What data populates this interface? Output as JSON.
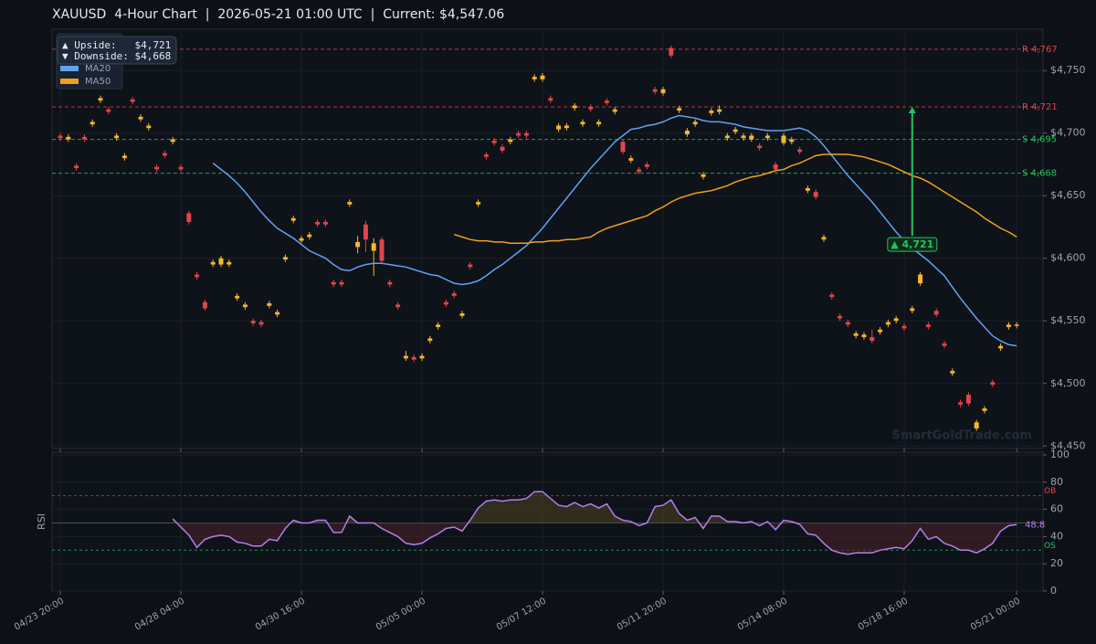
{
  "chart_data": [
    {
      "type": "candlestick",
      "title": "XAUUSD  4-Hour Chart  |  2026-05-21 01:00 UTC  |  Current: $4,547.06",
      "categories": [
        "04/23 20:00",
        null,
        null,
        null,
        null,
        null,
        null,
        null,
        null,
        null,
        null,
        null,
        null,
        null,
        null,
        "04/28 04:00",
        null,
        null,
        null,
        null,
        null,
        null,
        null,
        null,
        null,
        null,
        null,
        null,
        null,
        null,
        "04/30 16:00",
        null,
        null,
        null,
        null,
        null,
        null,
        null,
        null,
        null,
        null,
        null,
        null,
        null,
        null,
        "05/05 00:00",
        null,
        null,
        null,
        null,
        null,
        null,
        null,
        null,
        null,
        null,
        null,
        null,
        null,
        null,
        "05/07 12:00",
        null,
        null,
        null,
        null,
        null,
        null,
        null,
        null,
        null,
        null,
        null,
        null,
        null,
        null,
        "05/11 20:00",
        null,
        null,
        null,
        null,
        null,
        null,
        null,
        null,
        null,
        null,
        null,
        null,
        null,
        null,
        "05/14 08:00",
        null,
        null,
        null,
        null,
        null,
        null,
        null,
        null,
        null,
        null,
        null,
        null,
        null,
        null,
        "05/18 16:00",
        null,
        null,
        null,
        null,
        null,
        null,
        null,
        null,
        null,
        null,
        null,
        null,
        null,
        "05/21 00:00"
      ],
      "open": [
        4698,
        4695,
        4674,
        4697,
        4707,
        4726,
        4719,
        4696,
        4680,
        4727,
        4711,
        4704,
        4673,
        4684,
        4693,
        4673,
        4636,
        4587,
        4565,
        4595,
        4595,
        4595,
        4568,
        4561,
        4550,
        4549,
        4562,
        4555,
        4599,
        4630,
        4614,
        4617,
        4629,
        4629,
        4581,
        4581,
        4643,
        4609,
        4627,
        4606,
        4615,
        4581,
        4563,
        4520,
        4521,
        4520,
        4534,
        4545,
        4565,
        4572,
        4554,
        4595,
        4643,
        4683,
        4694,
        4689,
        4693,
        4700,
        4700,
        4743,
        4743,
        4728,
        4703,
        4704,
        4720,
        4707,
        4721,
        4707,
        4726,
        4717,
        4693,
        4678,
        4671,
        4675,
        4735,
        4732,
        4768,
        4718,
        4699,
        4707,
        4665,
        4716,
        4717,
        4696,
        4701,
        4696,
        4695,
        4690,
        4696,
        4675,
        4692,
        4693,
        4687,
        4654,
        4653,
        4615,
        4571,
        4554,
        4549,
        4538,
        4537,
        4537,
        4541,
        4547,
        4550,
        4546,
        4558,
        4580,
        4547,
        4558,
        4532,
        4508,
        4485,
        4491,
        4464,
        4478,
        4501,
        4528,
        4545,
        4546
      ],
      "high": [
        4700,
        4699,
        4676,
        4699,
        4711,
        4730,
        4721,
        4700,
        4684,
        4729,
        4715,
        4708,
        4675,
        4686,
        4697,
        4675,
        4638,
        4589,
        4567,
        4599,
        4602,
        4599,
        4572,
        4565,
        4552,
        4551,
        4566,
        4559,
        4603,
        4634,
        4618,
        4621,
        4631,
        4631,
        4583,
        4583,
        4647,
        4618,
        4630,
        4616,
        4617,
        4583,
        4565,
        4526,
        4523,
        4524,
        4538,
        4549,
        4567,
        4574,
        4558,
        4597,
        4647,
        4685,
        4696,
        4691,
        4697,
        4702,
        4702,
        4747,
        4748,
        4730,
        4708,
        4708,
        4724,
        4711,
        4723,
        4711,
        4728,
        4721,
        4695,
        4682,
        4673,
        4677,
        4737,
        4737,
        4770,
        4722,
        4704,
        4711,
        4669,
        4720,
        4722,
        4700,
        4705,
        4700,
        4700,
        4692,
        4700,
        4677,
        4700,
        4697,
        4689,
        4658,
        4655,
        4619,
        4573,
        4556,
        4551,
        4542,
        4541,
        4543,
        4545,
        4551,
        4554,
        4548,
        4562,
        4589,
        4549,
        4560,
        4534,
        4512,
        4487,
        4493,
        4471,
        4482,
        4503,
        4532,
        4549,
        4549
      ],
      "low": [
        4694,
        4693,
        4670,
        4693,
        4705,
        4724,
        4715,
        4694,
        4678,
        4723,
        4709,
        4702,
        4669,
        4680,
        4691,
        4669,
        4627,
        4583,
        4558,
        4593,
        4593,
        4593,
        4566,
        4559,
        4546,
        4545,
        4560,
        4553,
        4597,
        4628,
        4612,
        4615,
        4625,
        4625,
        4577,
        4577,
        4641,
        4604,
        4605,
        4586,
        4596,
        4577,
        4559,
        4518,
        4517,
        4518,
        4532,
        4543,
        4561,
        4568,
        4552,
        4591,
        4641,
        4679,
        4690,
        4684,
        4691,
        4696,
        4696,
        4741,
        4741,
        4724,
        4701,
        4702,
        4718,
        4705,
        4717,
        4705,
        4722,
        4715,
        4683,
        4676,
        4667,
        4671,
        4731,
        4730,
        4760,
        4716,
        4697,
        4705,
        4663,
        4714,
        4715,
        4694,
        4699,
        4694,
        4693,
        4686,
        4694,
        4669,
        4690,
        4691,
        4683,
        4652,
        4647,
        4613,
        4567,
        4550,
        4545,
        4536,
        4535,
        4532,
        4539,
        4545,
        4548,
        4542,
        4556,
        4578,
        4543,
        4553,
        4528,
        4506,
        4481,
        4482,
        4462,
        4476,
        4497,
        4526,
        4543,
        4544
      ],
      "close": [
        4696,
        4697,
        4672,
        4695,
        4709,
        4728,
        4717,
        4698,
        4682,
        4725,
        4713,
        4706,
        4671,
        4682,
        4695,
        4671,
        4629,
        4585,
        4560,
        4597,
        4600,
        4597,
        4570,
        4563,
        4548,
        4547,
        4564,
        4557,
        4601,
        4632,
        4616,
        4619,
        4627,
        4627,
        4579,
        4579,
        4645,
        4613,
        4615,
        4612,
        4598,
        4579,
        4561,
        4522,
        4519,
        4522,
        4536,
        4547,
        4563,
        4570,
        4556,
        4593,
        4645,
        4681,
        4692,
        4686,
        4695,
        4698,
        4698,
        4745,
        4746,
        4726,
        4706,
        4706,
        4722,
        4709,
        4719,
        4709,
        4724,
        4719,
        4685,
        4680,
        4669,
        4673,
        4733,
        4735,
        4762,
        4720,
        4702,
        4709,
        4667,
        4718,
        4719,
        4698,
        4703,
        4698,
        4698,
        4688,
        4698,
        4671,
        4698,
        4695,
        4685,
        4656,
        4649,
        4617,
        4569,
        4552,
        4547,
        4540,
        4539,
        4534,
        4543,
        4549,
        4552,
        4544,
        4560,
        4587,
        4545,
        4555,
        4530,
        4510,
        4483,
        4484,
        4469,
        4480,
        4499,
        4530,
        4547,
        4547.06
      ],
      "up_color": "#f5b731",
      "down_color": "#e0454a",
      "ylim": [
        4448,
        4783
      ],
      "yticks": [
        {
          "value": 4450,
          "label": "$4,450"
        },
        {
          "value": 4500,
          "label": "$4,500"
        },
        {
          "value": 4550,
          "label": "$4,550"
        },
        {
          "value": 4600,
          "label": "$4,600"
        },
        {
          "value": 4650,
          "label": "$4,650"
        },
        {
          "value": 4700,
          "label": "$4,700"
        },
        {
          "value": 4750,
          "label": "$4,750"
        }
      ],
      "grid": true,
      "legend": "upper left",
      "series": [
        {
          "name": "MA20",
          "color": "#5fa3f0",
          "values": [
            null,
            null,
            null,
            null,
            null,
            null,
            null,
            null,
            null,
            null,
            null,
            null,
            null,
            null,
            null,
            null,
            null,
            null,
            null,
            4676,
            4671,
            4666,
            4660,
            4653,
            4645,
            4637,
            4630,
            4624,
            4620,
            4616,
            4611,
            4606,
            4603,
            4600,
            4595,
            4591,
            4590,
            4593,
            4595,
            4596,
            4596,
            4595,
            4594,
            4593,
            4591,
            4589,
            4587,
            4586,
            4583,
            4580,
            4579,
            4580,
            4582,
            4586,
            4591,
            4595,
            4600,
            4605,
            4610,
            4617,
            4624,
            4632,
            4640,
            4648,
            4656,
            4664,
            4672,
            4679,
            4686,
            4693,
            4698,
            4703,
            4704,
            4706,
            4707,
            4709,
            4712,
            4714,
            4713,
            4712,
            4710,
            4709,
            4709,
            4708,
            4707,
            4705,
            4704,
            4703,
            4702,
            4702,
            4702,
            4703,
            4704,
            4702,
            4697,
            4690,
            4682,
            4674,
            4666,
            4659,
            4652,
            4645,
            4637,
            4629,
            4621,
            4614,
            4608,
            4603,
            4598,
            4592,
            4586,
            4577,
            4568,
            4560,
            4552,
            4545,
            4538,
            4534,
            4531,
            4530
          ]
        },
        {
          "name": "MA50",
          "color": "#f0a020",
          "values": [
            null,
            null,
            null,
            null,
            null,
            null,
            null,
            null,
            null,
            null,
            null,
            null,
            null,
            null,
            null,
            null,
            null,
            null,
            null,
            null,
            null,
            null,
            null,
            null,
            null,
            null,
            null,
            null,
            null,
            null,
            null,
            null,
            null,
            null,
            null,
            null,
            null,
            null,
            null,
            null,
            null,
            null,
            null,
            null,
            null,
            null,
            null,
            null,
            null,
            4619,
            4617,
            4615,
            4614,
            4614,
            4613,
            4613,
            4612,
            4612,
            4612,
            4613,
            4613,
            4614,
            4614,
            4615,
            4615,
            4616,
            4617,
            4621,
            4624,
            4626,
            4628,
            4630,
            4632,
            4634,
            4638,
            4641,
            4645,
            4648,
            4650,
            4652,
            4653,
            4654,
            4656,
            4658,
            4661,
            4663,
            4665,
            4666,
            4668,
            4670,
            4671,
            4674,
            4676,
            4679,
            4682,
            4683,
            4683,
            4683,
            4683,
            4682,
            4681,
            4679,
            4677,
            4675,
            4672,
            4669,
            4666,
            4664,
            4661,
            4657,
            4653,
            4649,
            4645,
            4641,
            4637,
            4632,
            4628,
            4624,
            4621,
            4617
          ]
        }
      ],
      "levels": [
        {
          "value": 4767,
          "label": "R 4,767",
          "color": "#e0454a"
        },
        {
          "value": 4721,
          "label": "R 4,721",
          "color": "#e0454a"
        },
        {
          "value": 4695,
          "label": "S 4,695",
          "color": "#22c55e"
        },
        {
          "value": 4668,
          "label": "S 4,668",
          "color": "#22c55e"
        }
      ],
      "annotation": {
        "at": 106,
        "from": 4618,
        "to": 4721,
        "label": "▲ 4,721",
        "color": "#22c55e"
      },
      "info_box": [
        "▲ Upside:   $4,721",
        "▼ Downside: $4,668"
      ],
      "watermark": "SmartGoldTrade.com"
    },
    {
      "type": "line",
      "ylabel": "RSI",
      "color": "#b37feb",
      "values": [
        null,
        null,
        null,
        null,
        null,
        null,
        null,
        null,
        null,
        null,
        null,
        null,
        null,
        null,
        53,
        47,
        41,
        32,
        38,
        40,
        41,
        40,
        36,
        35,
        33,
        33,
        38,
        37,
        46,
        52,
        50,
        50,
        52,
        52,
        43,
        43,
        55,
        50,
        50,
        50,
        46,
        43,
        40,
        35,
        34,
        35,
        39,
        42,
        46,
        47,
        44,
        52,
        61,
        66,
        67,
        66,
        67,
        67,
        68,
        73,
        73,
        68,
        63,
        62,
        65,
        62,
        64,
        61,
        64,
        55,
        52,
        51,
        48,
        50,
        62,
        63,
        67,
        57,
        52,
        54,
        46,
        55,
        55,
        51,
        51,
        50,
        51,
        48,
        51,
        45,
        52,
        51,
        49,
        42,
        41,
        35,
        30,
        28,
        27,
        28,
        28,
        28,
        30,
        31,
        32,
        31,
        37,
        46,
        38,
        40,
        35,
        33,
        30,
        30,
        28,
        31,
        35,
        44,
        48,
        48.8
      ],
      "ylim": [
        0,
        102
      ],
      "yticks": [
        0,
        20,
        40,
        60,
        80,
        100
      ],
      "grid": true,
      "baseline": 50,
      "levels": [
        {
          "value": 70,
          "label": "OB",
          "color": "#e0454a"
        },
        {
          "value": 30,
          "label": "OS",
          "color": "#22c55e"
        }
      ]
    }
  ]
}
